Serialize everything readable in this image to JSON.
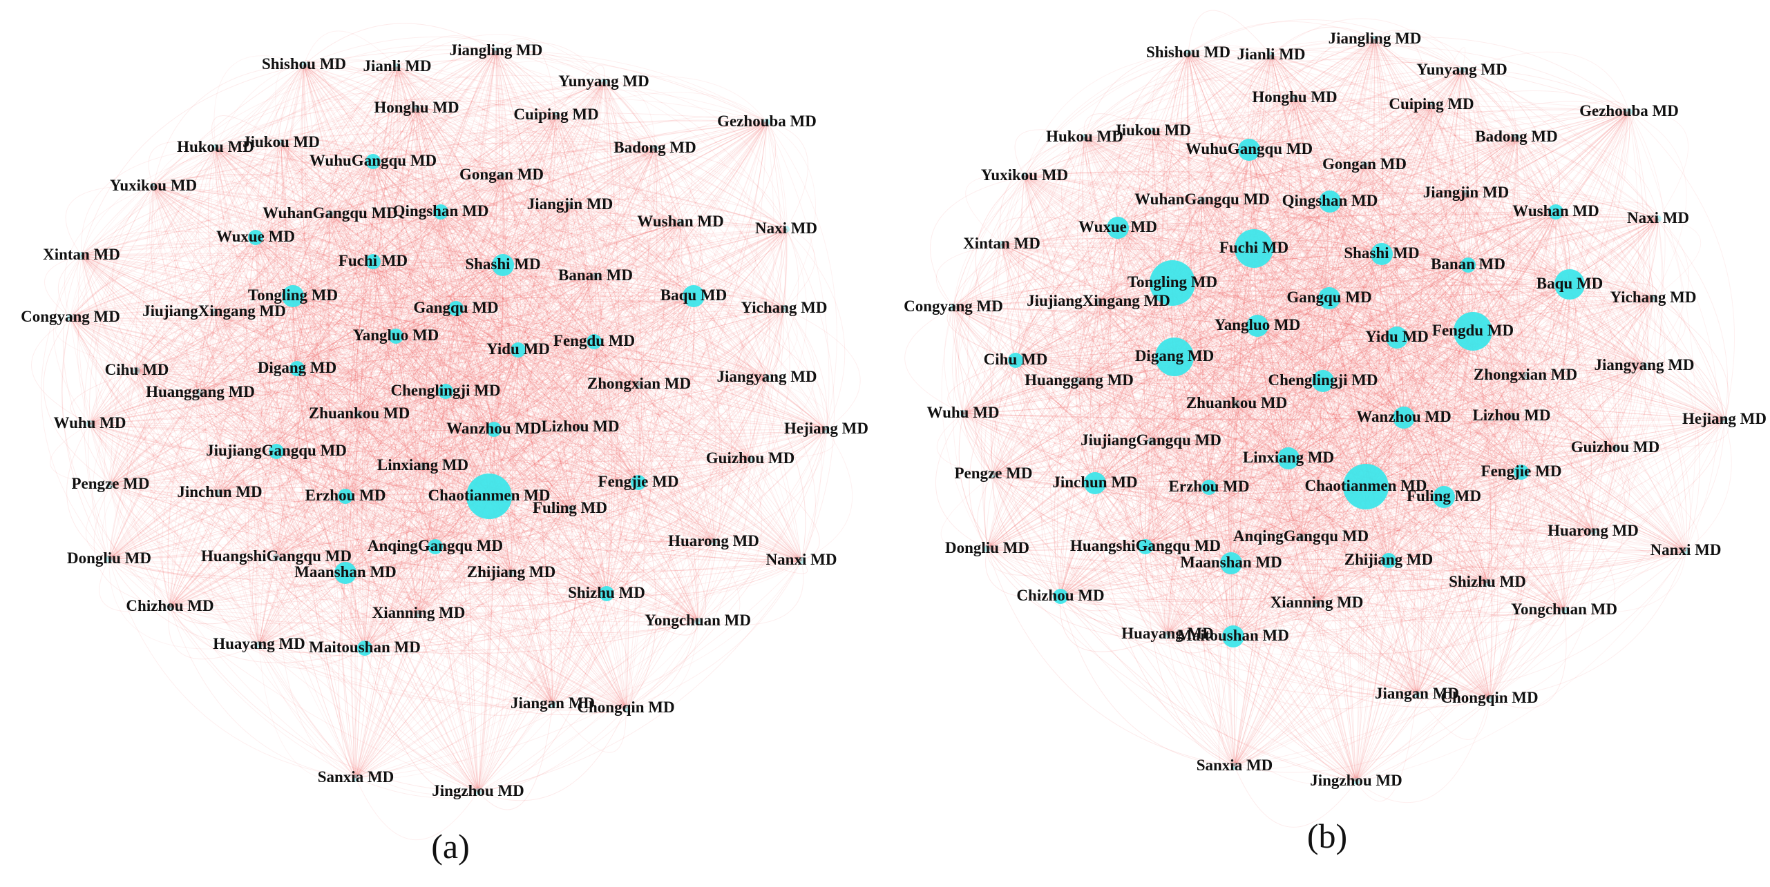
{
  "colors": {
    "edge": "#f05a5a",
    "node": "#3ee6ea",
    "text": "#111111"
  },
  "labels": [
    "Shishou MD",
    "Jianli MD",
    "Jiangling MD",
    "Yunyang MD",
    "Gezhouba MD",
    "Honghu MD",
    "Cuiping MD",
    "Hukou MD",
    "Jiukou MD",
    "Badong MD",
    "WuhuGangqu MD",
    "Gongan MD",
    "Yuxikou MD",
    "WuhanGangqu MD",
    "Qingshan MD",
    "Jiangjin MD",
    "Wushan MD",
    "Naxi MD",
    "Xintan MD",
    "Wuxue MD",
    "Fuchi MD",
    "Shashi MD",
    "Banan MD",
    "Tongling MD",
    "Baqu MD",
    "Yichang MD",
    "Congyang MD",
    "JiujiangXingang MD",
    "Gangqu MD",
    "Yangluo MD",
    "Fengdu MD",
    "Yidu MD",
    "Cihu MD",
    "Digang MD",
    "Jiangyang MD",
    "Zhongxian MD",
    "Huanggang MD",
    "Chenglingji MD",
    "Zhuankou MD",
    "Wuhu MD",
    "Wanzhou MD",
    "Lizhou MD",
    "Hejiang MD",
    "JiujiangGangqu MD",
    "Linxiang MD",
    "Guizhou MD",
    "Pengze MD",
    "Jinchun MD",
    "Erzhou MD",
    "Chaotianmen MD",
    "Fengjie MD",
    "Fuling MD",
    "Huarong MD",
    "Nanxi MD",
    "AnqingGangqu MD",
    "Dongliu MD",
    "HuangshiGangqu MD",
    "Maanshan MD",
    "Zhijiang MD",
    "Shizhu MD",
    "Chizhou MD",
    "Xianning MD",
    "Yongchuan MD",
    "Huayang MD",
    "Maitoushan MD",
    "Jiangan MD",
    "Chongqin MD",
    "Sanxia MD",
    "Jingzhou MD"
  ],
  "panels": [
    {
      "caption": "(a)",
      "node_size": {
        "Chaotianmen MD": 5,
        "Tongling MD": 2,
        "Baqu MD": 2,
        "Shashi MD": 2,
        "Maanshan MD": 2,
        "Qingshan MD": 1,
        "Gangqu MD": 1,
        "Fuchi MD": 1,
        "Yidu MD": 1,
        "Wanzhou MD": 1,
        "Chenglingji MD": 1,
        "Yangluo MD": 1,
        "Digang MD": 1,
        "WuhuGangqu MD": 1,
        "Wuxue MD": 1,
        "JiujiangGangqu MD": 1,
        "Erzhou MD": 1,
        "AnqingGangqu MD": 1,
        "Fengdu MD": 1,
        "Shizhu MD": 1,
        "Fengjie MD": 1,
        "Maitoushan MD": 1
      }
    },
    {
      "caption": "(b)",
      "node_size": {
        "Tongling MD": 5,
        "Chaotianmen MD": 5,
        "Digang MD": 4,
        "Fuchi MD": 4,
        "Fengdu MD": 4,
        "Baqu MD": 3,
        "Wuxue MD": 2,
        "Shashi MD": 2,
        "Gangqu MD": 2,
        "Yidu MD": 2,
        "Wanzhou MD": 2,
        "WuhuGangqu MD": 2,
        "Jinchun MD": 2,
        "Linxiang MD": 2,
        "Maanshan MD": 2,
        "Maitoushan MD": 2,
        "Chenglingji MD": 2,
        "Fuling MD": 2,
        "Yangluo MD": 2,
        "Qingshan MD": 2,
        "Zhijiang MD": 1,
        "Fengjie MD": 1,
        "Erzhou MD": 1,
        "HuangshiGangqu MD": 1,
        "Chizhou MD": 1,
        "Cihu MD": 1,
        "Banan MD": 1,
        "Wushan MD": 1
      }
    }
  ]
}
